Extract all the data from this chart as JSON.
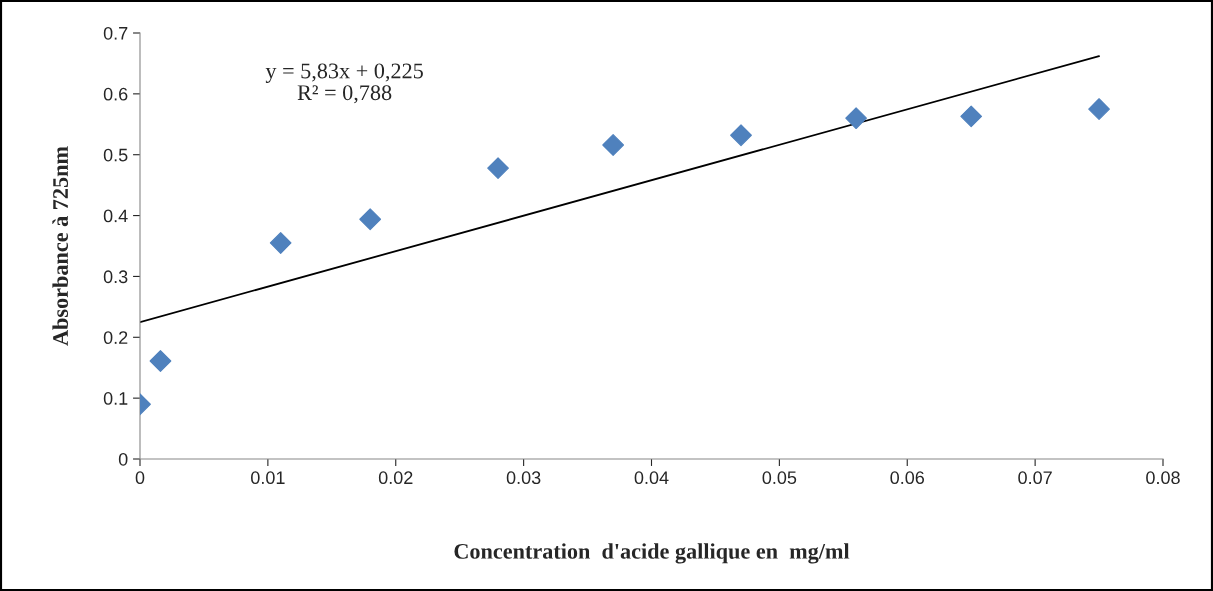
{
  "chart_data": {
    "type": "scatter",
    "xlabel": "Concentration  d'acide gallique en  mg/ml",
    "ylabel": "Absorbance à 725nm",
    "grid": false,
    "legend": false,
    "xlim": [
      0,
      0.08
    ],
    "xticks": [
      0,
      0.01,
      0.02,
      0.03,
      0.04,
      0.05,
      0.06,
      0.07,
      0.08
    ],
    "ylim": [
      0,
      0.7
    ],
    "yticks": [
      0,
      0.1,
      0.2,
      0.3,
      0.4,
      0.5,
      0.6,
      0.7
    ],
    "series": [
      {
        "marker": "diamond",
        "color": "#4f81bd",
        "x": [
          0.0,
          0.0016,
          0.011,
          0.018,
          0.028,
          0.037,
          0.047,
          0.056,
          0.065,
          0.075
        ],
        "values": [
          0.09,
          0.161,
          0.355,
          0.394,
          0.478,
          0.516,
          0.532,
          0.56,
          0.563,
          0.575
        ]
      },
      {
        "type": "line",
        "color": "#000000",
        "x": [
          0.0,
          0.075
        ],
        "values": [
          0.225,
          0.662
        ]
      }
    ],
    "annotations": [
      "y = 5,83x + 0,225\nR² = 0,788"
    ]
  }
}
